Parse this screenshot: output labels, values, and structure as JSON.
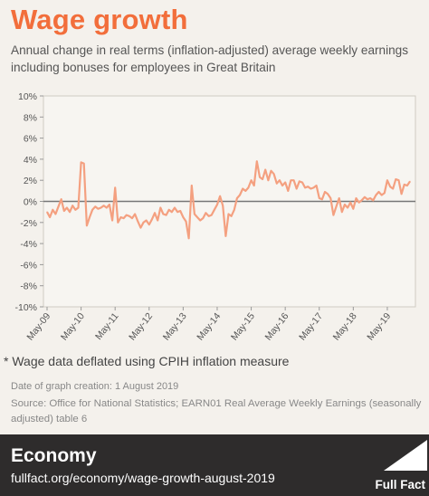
{
  "header": {
    "title": "Wage growth",
    "subtitle": "Annual change in real terms (inflation-adjusted) average weekly earnings including bonuses for employees in Great Britain"
  },
  "notes": {
    "footnote": "*  Wage data deflated using CPIH inflation measure",
    "creation_date": "Date of graph creation: 1 August 2019",
    "source": "Source: Office for National Statistics; EARN01 Real Average Weekly Earnings (seasonally adjusted) table 6"
  },
  "footer": {
    "section": "Economy",
    "url": "fullfact.org/economy/wage-growth-august-2019",
    "logo_text": "Full Fact"
  },
  "colors": {
    "title": "#f26e3b",
    "line": "#f4a080",
    "zero_line": "#777777",
    "footer_bg": "#2e2c2c"
  },
  "chart_data": {
    "type": "line",
    "title": "",
    "xlabel": "",
    "ylabel": "",
    "ylim": [
      -10,
      10
    ],
    "yticks": [
      10,
      8,
      6,
      4,
      2,
      0,
      -2,
      -4,
      -6,
      -8,
      -10
    ],
    "ytick_labels": [
      "10%",
      "8%",
      "6%",
      "4%",
      "2%",
      "0%",
      "-2%",
      "-4%",
      "-6%",
      "-8%",
      "-10%"
    ],
    "xtick_labels": [
      "May-09",
      "May-10",
      "May-11",
      "May-12",
      "May-13",
      "May-14",
      "May-15",
      "May-16",
      "May-17",
      "May-18",
      "May-19"
    ],
    "grid": false,
    "series": [
      {
        "values": [
          -1.0,
          -1.5,
          -0.8,
          -1.2,
          -0.5,
          0.2,
          -0.9,
          -0.6,
          -1.0,
          -0.4,
          -0.8,
          -0.6,
          3.7,
          3.6,
          -2.3,
          -1.5,
          -0.8,
          -0.5,
          -0.7,
          -0.6,
          -0.4,
          -0.6,
          -0.3,
          -1.8,
          1.3,
          -2.0,
          -1.5,
          -1.6,
          -1.3,
          -1.4,
          -1.6,
          -1.2,
          -1.9,
          -2.5,
          -2.0,
          -1.8,
          -2.2,
          -1.7,
          -1.1,
          -1.8,
          -0.6,
          -1.2,
          -1.3,
          -0.8,
          -1.0,
          -0.6,
          -1.0,
          -0.9,
          -1.5,
          -1.9,
          -3.5,
          1.5,
          -1.2,
          -1.5,
          -1.8,
          -1.6,
          -1.1,
          -1.4,
          -1.3,
          -0.8,
          -0.3,
          0.5,
          -0.4,
          -3.3,
          -1.2,
          -1.4,
          -0.8,
          0.3,
          0.6,
          1.2,
          1.0,
          1.3,
          2.0,
          1.5,
          3.8,
          2.3,
          2.1,
          3.0,
          2.0,
          2.9,
          2.6,
          1.7,
          2.0,
          1.5,
          1.8,
          1.0,
          2.0,
          2.0,
          1.2,
          1.9,
          1.8,
          1.3,
          1.4,
          1.2,
          1.3,
          1.5,
          0.3,
          0.2,
          0.9,
          0.7,
          0.3,
          -1.3,
          -0.5,
          0.3,
          -1.0,
          -0.3,
          -0.6,
          -0.1,
          -0.7,
          0.3,
          -0.1,
          0.1,
          0.4,
          0.2,
          0.3,
          0.1,
          0.6,
          0.9,
          0.6,
          0.8,
          2.0,
          1.4,
          1.2,
          2.1,
          2.0,
          0.7,
          1.6,
          1.5,
          1.9
        ]
      }
    ]
  }
}
